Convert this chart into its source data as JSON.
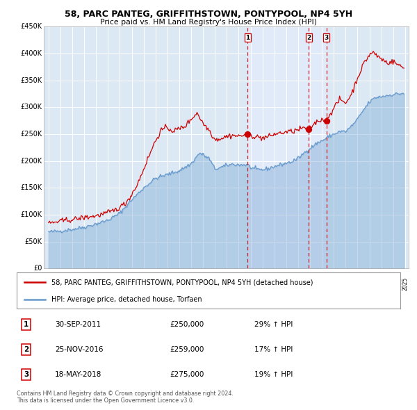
{
  "title": "58, PARC PANTEG, GRIFFITHSTOWN, PONTYPOOL, NP4 5YH",
  "subtitle": "Price paid vs. HM Land Registry's House Price Index (HPI)",
  "legend_line1": "58, PARC PANTEG, GRIFFITHSTOWN, PONTYPOOL, NP4 5YH (detached house)",
  "legend_line2": "HPI: Average price, detached house, Torfaen",
  "footer1": "Contains HM Land Registry data © Crown copyright and database right 2024.",
  "footer2": "This data is licensed under the Open Government Licence v3.0.",
  "sale_color": "#cc0000",
  "hpi_color": "#6699cc",
  "background_plot": "#dce9f5",
  "background_fig": "#ffffff",
  "grid_color": "#ffffff",
  "dashed_line_color": "#cc0000",
  "ylim": [
    0,
    450000
  ],
  "yticks": [
    0,
    50000,
    100000,
    150000,
    200000,
    250000,
    300000,
    350000,
    400000,
    450000
  ],
  "ytick_labels": [
    "£0",
    "£50K",
    "£100K",
    "£150K",
    "£200K",
    "£250K",
    "£300K",
    "£350K",
    "£400K",
    "£450K"
  ],
  "transactions": [
    {
      "num": 1,
      "date": "30-SEP-2011",
      "price": 250000,
      "hpi_pct": "29%",
      "date_decimal": 2011.75
    },
    {
      "num": 2,
      "date": "25-NOV-2016",
      "price": 259000,
      "hpi_pct": "17%",
      "date_decimal": 2016.9
    },
    {
      "num": 3,
      "date": "18-MAY-2018",
      "price": 275000,
      "hpi_pct": "19%",
      "date_decimal": 2018.38
    }
  ],
  "transaction_price_points": [
    250000,
    259000,
    275000
  ],
  "table_rows": [
    {
      "num": "1",
      "date": "30-SEP-2011",
      "price": "£250,000",
      "pct": "29% ↑ HPI"
    },
    {
      "num": "2",
      "date": "25-NOV-2016",
      "price": "£259,000",
      "pct": "17% ↑ HPI"
    },
    {
      "num": "3",
      "date": "18-MAY-2018",
      "price": "£275,000",
      "pct": "19% ↑ HPI"
    }
  ]
}
